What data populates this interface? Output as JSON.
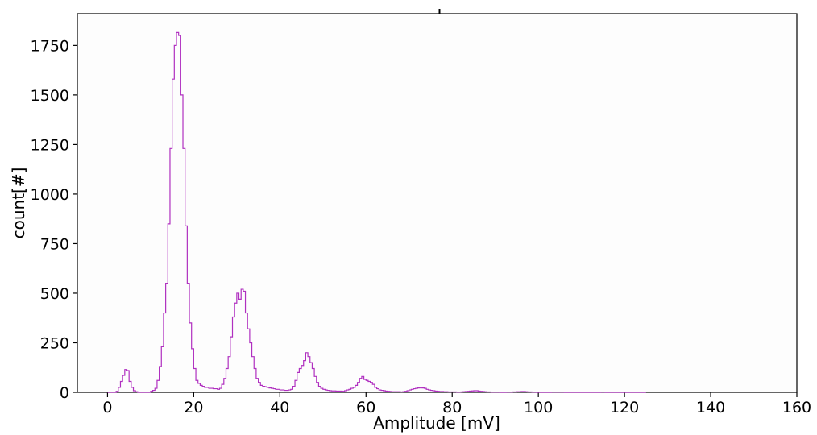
{
  "chart_data": {
    "type": "histogram",
    "title": "",
    "xlabel": "Amplitude [mV]",
    "ylabel": "count[#]",
    "xlim": [
      -7,
      160
    ],
    "ylim": [
      0,
      1910
    ],
    "xticks": [
      0,
      20,
      40,
      60,
      80,
      100,
      120,
      140,
      160
    ],
    "yticks": [
      0,
      250,
      500,
      750,
      1000,
      1250,
      1500,
      1750
    ],
    "grid": false,
    "legend": "none",
    "series_color": "#b030c0",
    "bin_width": 0.5,
    "bins_start": 0,
    "counts": [
      0,
      0,
      0,
      0,
      5,
      25,
      55,
      85,
      115,
      110,
      55,
      25,
      8,
      3,
      0,
      0,
      0,
      0,
      0,
      0,
      5,
      10,
      20,
      60,
      130,
      230,
      400,
      550,
      850,
      1230,
      1580,
      1750,
      1815,
      1800,
      1500,
      1230,
      840,
      550,
      350,
      220,
      120,
      60,
      45,
      35,
      30,
      25,
      25,
      20,
      20,
      18,
      18,
      15,
      20,
      40,
      70,
      120,
      180,
      280,
      380,
      450,
      500,
      470,
      520,
      510,
      400,
      320,
      250,
      180,
      120,
      70,
      50,
      35,
      30,
      28,
      25,
      22,
      20,
      18,
      15,
      15,
      12,
      12,
      10,
      10,
      12,
      15,
      30,
      60,
      100,
      120,
      135,
      160,
      200,
      180,
      150,
      120,
      80,
      50,
      30,
      20,
      15,
      12,
      10,
      8,
      7,
      7,
      6,
      6,
      6,
      5,
      8,
      12,
      15,
      20,
      25,
      35,
      50,
      70,
      80,
      65,
      60,
      55,
      50,
      40,
      25,
      18,
      12,
      10,
      8,
      6,
      5,
      4,
      3,
      3,
      3,
      3,
      2,
      3,
      5,
      8,
      12,
      15,
      18,
      20,
      22,
      24,
      22,
      20,
      15,
      12,
      10,
      8,
      6,
      5,
      4,
      4,
      3,
      3,
      2,
      2,
      2,
      2,
      1,
      1,
      2,
      3,
      4,
      5,
      6,
      7,
      8,
      8,
      6,
      5,
      4,
      3,
      2,
      2,
      1,
      1,
      1,
      1,
      0,
      0,
      0,
      1,
      1,
      1,
      2,
      2,
      3,
      3,
      4,
      4,
      3,
      2,
      2,
      1,
      1,
      0,
      0,
      0,
      0,
      0,
      0,
      0,
      1,
      1,
      1,
      1,
      1,
      1,
      0,
      0,
      0,
      0,
      0,
      0,
      0,
      0,
      0,
      0,
      0,
      0,
      0,
      0,
      0,
      0,
      0,
      1,
      1,
      0,
      0,
      0,
      0,
      0,
      0,
      0,
      0,
      0,
      0,
      0,
      0,
      0,
      0,
      0,
      0,
      0,
      0,
      0
    ]
  }
}
